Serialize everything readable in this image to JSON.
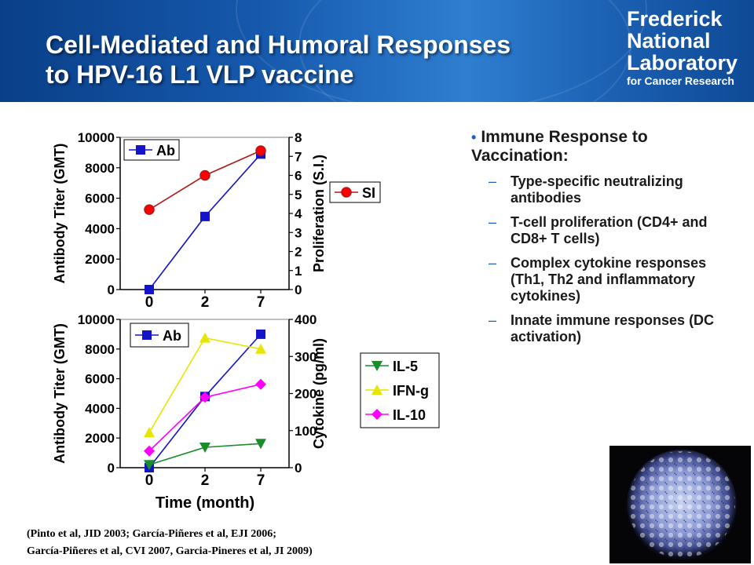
{
  "header": {
    "title_line1": "Cell-Mediated and Humoral Responses",
    "title_line2": "to HPV-16 L1 VLP vaccine",
    "logo_line1": "Frederick",
    "logo_line2": "National",
    "logo_line3": "Laboratory",
    "logo_line4": "for Cancer Research"
  },
  "bullets": {
    "main": "Immune Response to Vaccination:",
    "items": [
      "Type-specific neutralizing antibodies",
      "T-cell proliferation (CD4+ and CD8+  T cells)",
      "Complex cytokine responses (Th1, Th2 and inflammatory cytokines)",
      "Innate immune responses (DC activation)"
    ]
  },
  "references": {
    "line1": "(Pinto et al, JID 2003; García-Piñeres et al, EJI 2006;",
    "line2": "García-Piñeres et al, CVI 2007, Garcia-Pineres et al, JI 2009)"
  },
  "chart_data": [
    {
      "type": "line",
      "categories": [
        "0",
        "2",
        "7"
      ],
      "xlabel": "",
      "ylabel": "Antibody Titer (GMT)",
      "y2label": "Proliferation (S.I.)",
      "ylim": [
        0,
        10000
      ],
      "y2lim": [
        0,
        8
      ],
      "yticks": [
        "0",
        "2000",
        "4000",
        "6000",
        "8000",
        "10000"
      ],
      "y2ticks": [
        "0",
        "1",
        "2",
        "3",
        "4",
        "5",
        "6",
        "7",
        "8"
      ],
      "series": [
        {
          "name": "Ab",
          "axis": "left",
          "values": [
            0,
            4800,
            8900
          ],
          "color": "#1414c8",
          "marker": "square"
        },
        {
          "name": "SI",
          "axis": "right",
          "values": [
            4.2,
            6.0,
            7.3
          ],
          "color": "#b01818",
          "marker": "circle"
        }
      ]
    },
    {
      "type": "line",
      "categories": [
        "0",
        "2",
        "7"
      ],
      "xlabel": "Time (month)",
      "ylabel": "Antibody Titer (GMT)",
      "y2label": "Cytokine (pg/ml)",
      "ylim": [
        0,
        10000
      ],
      "y2lim": [
        0,
        400
      ],
      "yticks": [
        "0",
        "2000",
        "4000",
        "6000",
        "8000",
        "10000"
      ],
      "y2ticks": [
        "0",
        "100",
        "200",
        "300",
        "400"
      ],
      "series": [
        {
          "name": "Ab",
          "axis": "left",
          "values": [
            0,
            4800,
            9000
          ],
          "color": "#1414c8",
          "marker": "square"
        },
        {
          "name": "IL-5",
          "axis": "right",
          "values": [
            8,
            55,
            65
          ],
          "color": "#1a8c2a",
          "marker": "triangle-down"
        },
        {
          "name": "IFN-g",
          "axis": "right",
          "values": [
            95,
            350,
            320
          ],
          "color": "#e6e600",
          "marker": "triangle-up"
        },
        {
          "name": "IL-10",
          "axis": "right",
          "values": [
            45,
            190,
            225
          ],
          "color": "#ff00ff",
          "marker": "diamond"
        }
      ]
    }
  ]
}
